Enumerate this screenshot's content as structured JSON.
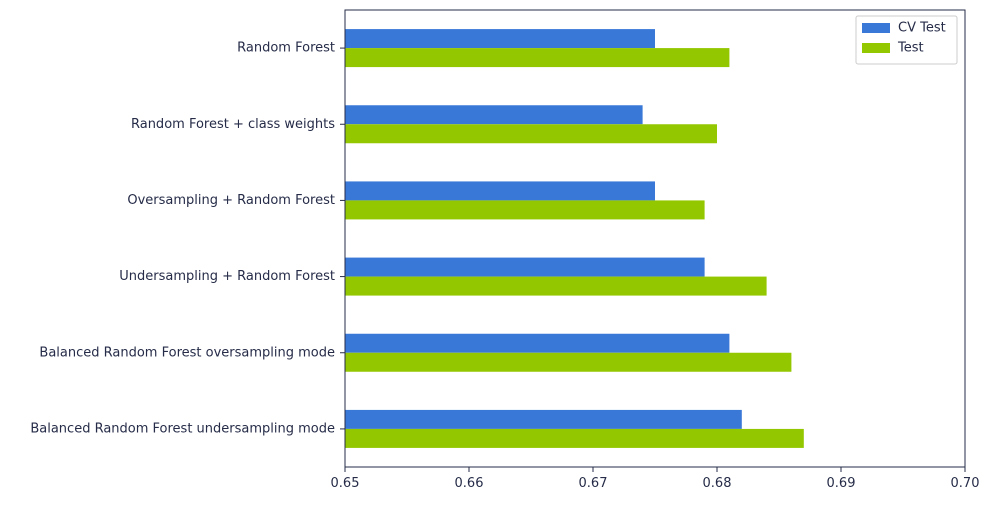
{
  "chart_data": {
    "type": "bar",
    "orientation": "horizontal",
    "title": "",
    "xlabel": "",
    "ylabel": "",
    "xlim": [
      0.65,
      0.7
    ],
    "x_ticks": [
      "0.65",
      "0.66",
      "0.67",
      "0.68",
      "0.69",
      "0.70"
    ],
    "grid": false,
    "legend_position": "top-right",
    "categories": [
      "Random Forest",
      "Random Forest + class weights",
      "Oversampling + Random Forest",
      "Undersampling + Random Forest",
      "Balanced Random Forest oversampling mode",
      "Balanced Random Forest undersampling mode"
    ],
    "series": [
      {
        "name": "CV Test",
        "color": "#3a78d8",
        "values": [
          0.675,
          0.674,
          0.675,
          0.679,
          0.681,
          0.682
        ]
      },
      {
        "name": "Test",
        "color": "#93c700",
        "values": [
          0.681,
          0.68,
          0.679,
          0.684,
          0.686,
          0.687
        ]
      }
    ],
    "colors": {
      "axis": "#262c48",
      "text": "#262c48",
      "background": "#ffffff"
    }
  }
}
